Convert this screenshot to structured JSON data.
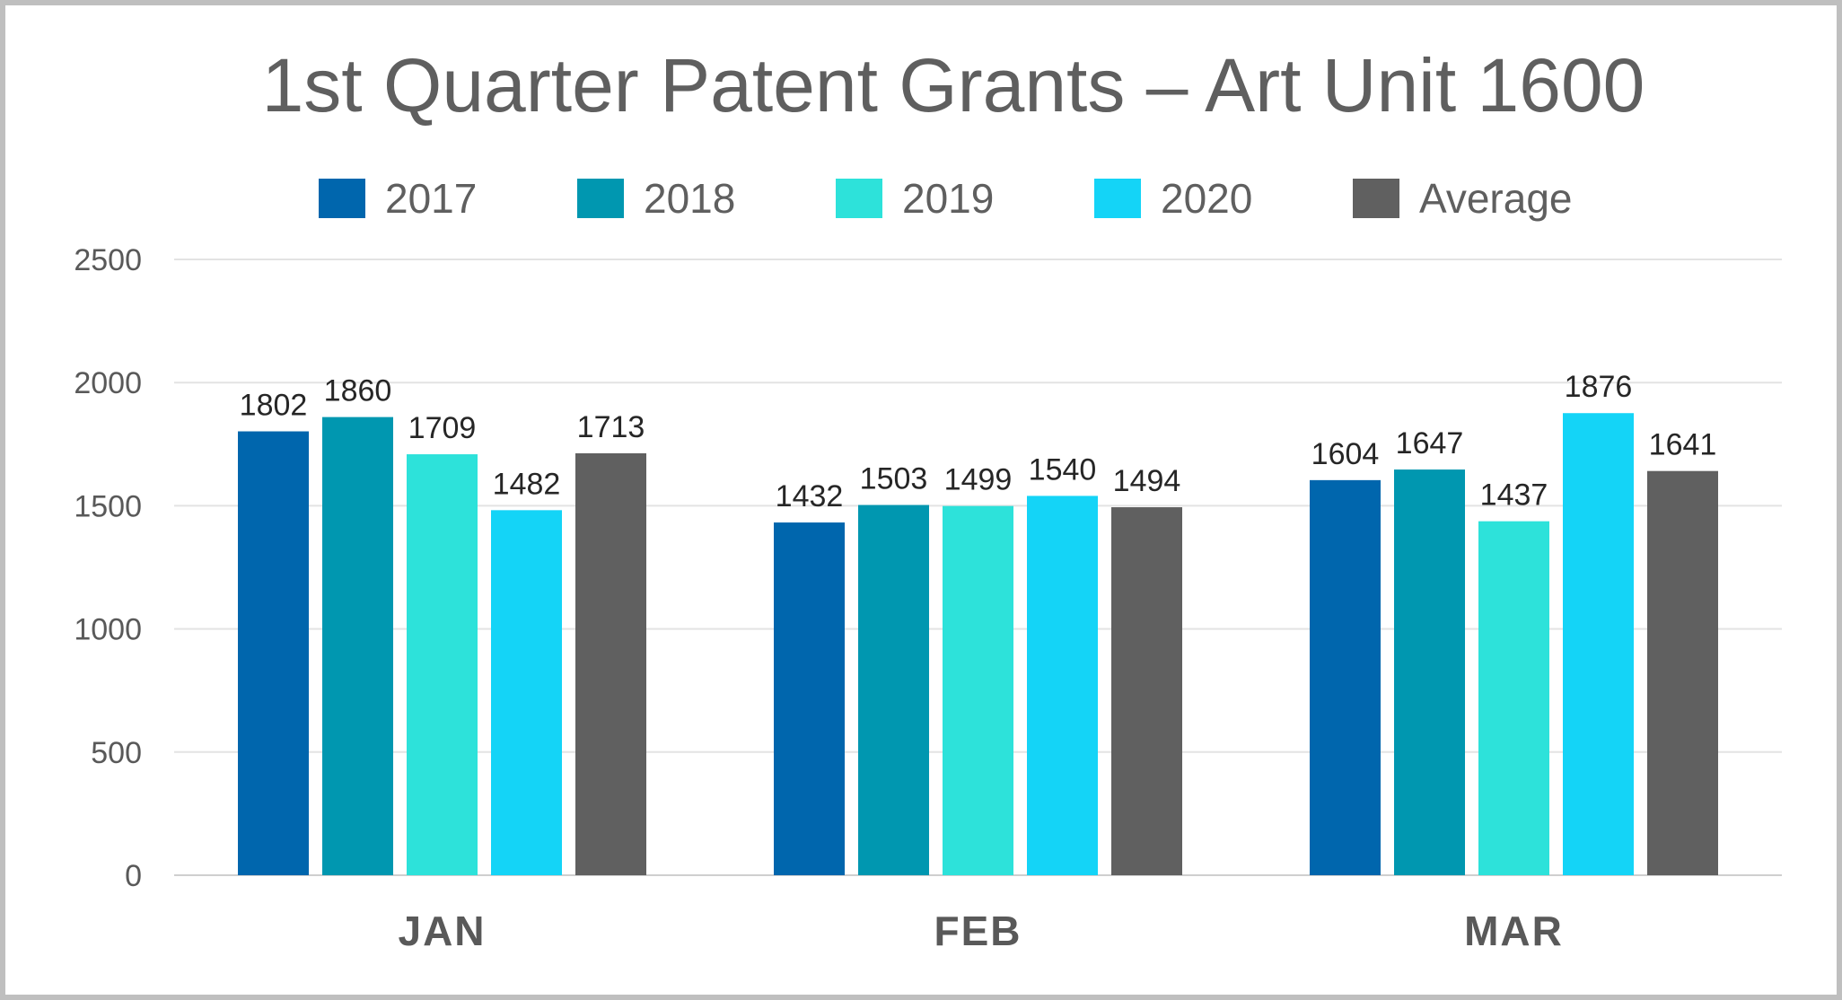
{
  "chart_data": {
    "type": "bar",
    "title": "1st Quarter Patent Grants – Art Unit 1600",
    "categories": [
      "JAN",
      "FEB",
      "MAR"
    ],
    "series": [
      {
        "name": "2017",
        "color": "#0066ad",
        "values": [
          1802,
          1432,
          1604
        ]
      },
      {
        "name": "2018",
        "color": "#0097b0",
        "values": [
          1860,
          1503,
          1647
        ]
      },
      {
        "name": "2019",
        "color": "#2de2da",
        "values": [
          1709,
          1499,
          1437
        ]
      },
      {
        "name": "2020",
        "color": "#14d4f7",
        "values": [
          1482,
          1540,
          1876
        ]
      },
      {
        "name": "Average",
        "color": "#606060",
        "values": [
          1713,
          1494,
          1641
        ]
      }
    ],
    "ylim": [
      0,
      2500
    ],
    "yticks": [
      0,
      500,
      1000,
      1500,
      2000,
      2500
    ],
    "grid": true,
    "legend_position": "top"
  }
}
